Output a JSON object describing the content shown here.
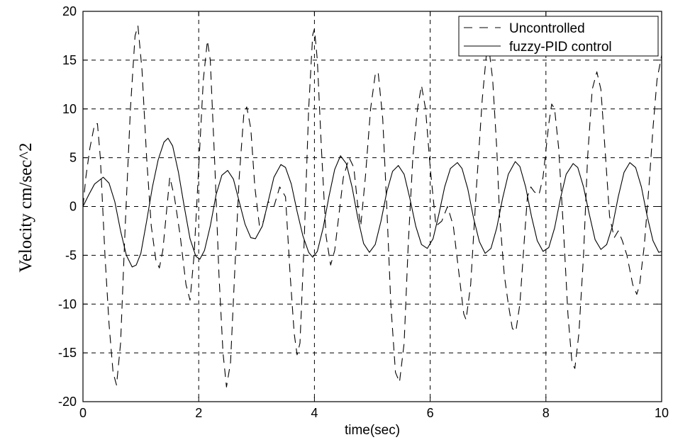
{
  "chart_data": {
    "type": "line",
    "title": "",
    "xlabel": "time(sec)",
    "ylabel": "Velocity cm/sec^2",
    "xlim": [
      0,
      10
    ],
    "ylim": [
      -20,
      20
    ],
    "x_ticks": [
      "0",
      "2",
      "4",
      "6",
      "8",
      "10"
    ],
    "y_ticks": [
      "-20",
      "-15",
      "-10",
      "-5",
      "0",
      "5",
      "10",
      "15",
      "20"
    ],
    "grid": true,
    "legend_position": "top-right",
    "series": [
      {
        "name": "Uncontrolled",
        "style": "dashed",
        "color": "#000000",
        "points": [
          [
            0.0,
            0
          ],
          [
            0.05,
            3
          ],
          [
            0.12,
            6
          ],
          [
            0.2,
            8.4
          ],
          [
            0.25,
            8.5
          ],
          [
            0.3,
            5
          ],
          [
            0.38,
            -5
          ],
          [
            0.45,
            -12
          ],
          [
            0.52,
            -17
          ],
          [
            0.58,
            -18.3
          ],
          [
            0.65,
            -14
          ],
          [
            0.73,
            -2
          ],
          [
            0.82,
            10
          ],
          [
            0.9,
            17.5
          ],
          [
            0.95,
            18.5
          ],
          [
            1.02,
            14
          ],
          [
            1.1,
            5
          ],
          [
            1.18,
            -2
          ],
          [
            1.26,
            -5.5
          ],
          [
            1.32,
            -6.3
          ],
          [
            1.38,
            -4.5
          ],
          [
            1.42,
            -2
          ],
          [
            1.5,
            3
          ],
          [
            1.58,
            1
          ],
          [
            1.68,
            -3
          ],
          [
            1.78,
            -8
          ],
          [
            1.85,
            -9.6
          ],
          [
            1.92,
            -5
          ],
          [
            2.0,
            4
          ],
          [
            2.08,
            13
          ],
          [
            2.15,
            17
          ],
          [
            2.2,
            15
          ],
          [
            2.28,
            4
          ],
          [
            2.35,
            -7
          ],
          [
            2.42,
            -15
          ],
          [
            2.48,
            -18.5
          ],
          [
            2.55,
            -16
          ],
          [
            2.62,
            -7
          ],
          [
            2.7,
            3
          ],
          [
            2.78,
            9.5
          ],
          [
            2.83,
            10.2
          ],
          [
            2.9,
            8
          ],
          [
            2.97,
            2
          ],
          [
            3.05,
            -2
          ],
          [
            3.12,
            -1.5
          ],
          [
            3.2,
            0.5
          ],
          [
            3.3,
            0
          ],
          [
            3.4,
            2
          ],
          [
            3.5,
            1
          ],
          [
            3.58,
            -7
          ],
          [
            3.65,
            -13
          ],
          [
            3.7,
            -15.2
          ],
          [
            3.75,
            -14
          ],
          [
            3.82,
            -4
          ],
          [
            3.9,
            10
          ],
          [
            3.97,
            17.6
          ],
          [
            4.0,
            18.2
          ],
          [
            4.05,
            15
          ],
          [
            4.12,
            6
          ],
          [
            4.2,
            -3
          ],
          [
            4.28,
            -6
          ],
          [
            4.35,
            -4.5
          ],
          [
            4.42,
            -1
          ],
          [
            4.5,
            3
          ],
          [
            4.6,
            5
          ],
          [
            4.68,
            4
          ],
          [
            4.75,
            0
          ],
          [
            4.8,
            -2
          ],
          [
            4.88,
            3
          ],
          [
            4.97,
            10
          ],
          [
            5.05,
            13.5
          ],
          [
            5.1,
            13.8
          ],
          [
            5.18,
            9
          ],
          [
            5.25,
            0
          ],
          [
            5.32,
            -10
          ],
          [
            5.4,
            -17
          ],
          [
            5.47,
            -18
          ],
          [
            5.55,
            -14
          ],
          [
            5.62,
            -4
          ],
          [
            5.7,
            5
          ],
          [
            5.78,
            10
          ],
          [
            5.85,
            12.4
          ],
          [
            5.92,
            10
          ],
          [
            6.0,
            4
          ],
          [
            6.1,
            -2
          ],
          [
            6.2,
            -1.5
          ],
          [
            6.3,
            0
          ],
          [
            6.4,
            -2
          ],
          [
            6.5,
            -7
          ],
          [
            6.58,
            -11
          ],
          [
            6.62,
            -11.6
          ],
          [
            6.7,
            -8
          ],
          [
            6.8,
            2
          ],
          [
            6.9,
            11
          ],
          [
            6.97,
            15.5
          ],
          [
            7.02,
            16
          ],
          [
            7.08,
            13
          ],
          [
            7.15,
            6
          ],
          [
            7.2,
            -1
          ],
          [
            7.28,
            -7
          ],
          [
            7.35,
            -10
          ],
          [
            7.42,
            -12.5
          ],
          [
            7.48,
            -12.8
          ],
          [
            7.55,
            -10
          ],
          [
            7.62,
            -4
          ],
          [
            7.68,
            1
          ],
          [
            7.74,
            2
          ],
          [
            7.8,
            1.5
          ],
          [
            7.88,
            1.2
          ],
          [
            7.95,
            3
          ],
          [
            8.05,
            8.5
          ],
          [
            8.1,
            10.5
          ],
          [
            8.15,
            10
          ],
          [
            8.22,
            6
          ],
          [
            8.3,
            -2
          ],
          [
            8.38,
            -11
          ],
          [
            8.45,
            -16
          ],
          [
            8.5,
            -16.6
          ],
          [
            8.57,
            -13
          ],
          [
            8.65,
            -5
          ],
          [
            8.72,
            5
          ],
          [
            8.8,
            12
          ],
          [
            8.88,
            13.8
          ],
          [
            8.95,
            12
          ],
          [
            9.02,
            6
          ],
          [
            9.1,
            -1
          ],
          [
            9.18,
            -3.2
          ],
          [
            9.25,
            -2.5
          ],
          [
            9.32,
            -3.5
          ],
          [
            9.4,
            -5
          ],
          [
            9.5,
            -8
          ],
          [
            9.57,
            -9
          ],
          [
            9.62,
            -8
          ],
          [
            9.7,
            -4
          ],
          [
            9.78,
            2
          ],
          [
            9.85,
            8
          ],
          [
            9.92,
            13
          ],
          [
            10.0,
            15.5
          ]
        ]
      },
      {
        "name": "fuzzy-PID control",
        "style": "solid",
        "color": "#000000",
        "points": [
          [
            0.0,
            0
          ],
          [
            0.1,
            1.2
          ],
          [
            0.2,
            2.3
          ],
          [
            0.35,
            3.0
          ],
          [
            0.45,
            2.4
          ],
          [
            0.55,
            0.5
          ],
          [
            0.65,
            -2.5
          ],
          [
            0.75,
            -5.0
          ],
          [
            0.85,
            -6.2
          ],
          [
            0.92,
            -6.0
          ],
          [
            1.0,
            -4.8
          ],
          [
            1.1,
            -1.5
          ],
          [
            1.2,
            2.0
          ],
          [
            1.3,
            4.8
          ],
          [
            1.4,
            6.6
          ],
          [
            1.47,
            7.0
          ],
          [
            1.55,
            6.2
          ],
          [
            1.65,
            3.5
          ],
          [
            1.75,
            0
          ],
          [
            1.85,
            -3.3
          ],
          [
            1.95,
            -5.1
          ],
          [
            2.02,
            -5.4
          ],
          [
            2.1,
            -4.5
          ],
          [
            2.2,
            -2.0
          ],
          [
            2.3,
            1.2
          ],
          [
            2.4,
            3.2
          ],
          [
            2.5,
            3.7
          ],
          [
            2.6,
            2.8
          ],
          [
            2.7,
            0.5
          ],
          [
            2.8,
            -1.8
          ],
          [
            2.9,
            -3.2
          ],
          [
            2.98,
            -3.3
          ],
          [
            3.1,
            -2.0
          ],
          [
            3.2,
            0.5
          ],
          [
            3.3,
            3.0
          ],
          [
            3.42,
            4.3
          ],
          [
            3.5,
            4.0
          ],
          [
            3.6,
            2.3
          ],
          [
            3.7,
            -0.5
          ],
          [
            3.8,
            -3.0
          ],
          [
            3.9,
            -4.7
          ],
          [
            3.97,
            -5.2
          ],
          [
            4.05,
            -4.6
          ],
          [
            4.15,
            -2.2
          ],
          [
            4.25,
            1.0
          ],
          [
            4.35,
            3.8
          ],
          [
            4.45,
            5.2
          ],
          [
            4.55,
            4.4
          ],
          [
            4.65,
            2.0
          ],
          [
            4.75,
            -1.2
          ],
          [
            4.85,
            -3.8
          ],
          [
            4.95,
            -4.7
          ],
          [
            5.05,
            -3.9
          ],
          [
            5.15,
            -1.5
          ],
          [
            5.25,
            1.5
          ],
          [
            5.35,
            3.6
          ],
          [
            5.45,
            4.2
          ],
          [
            5.55,
            3.3
          ],
          [
            5.65,
            0.8
          ],
          [
            5.75,
            -2.0
          ],
          [
            5.85,
            -3.9
          ],
          [
            5.95,
            -4.3
          ],
          [
            6.05,
            -3.3
          ],
          [
            6.15,
            -0.8
          ],
          [
            6.25,
            2.0
          ],
          [
            6.35,
            3.9
          ],
          [
            6.47,
            4.5
          ],
          [
            6.55,
            3.9
          ],
          [
            6.65,
            1.8
          ],
          [
            6.75,
            -1.2
          ],
          [
            6.85,
            -3.6
          ],
          [
            6.95,
            -4.8
          ],
          [
            7.05,
            -4.3
          ],
          [
            7.15,
            -2.2
          ],
          [
            7.25,
            0.8
          ],
          [
            7.35,
            3.3
          ],
          [
            7.47,
            4.6
          ],
          [
            7.55,
            4.1
          ],
          [
            7.65,
            2.0
          ],
          [
            7.75,
            -1.0
          ],
          [
            7.85,
            -3.5
          ],
          [
            7.95,
            -4.6
          ],
          [
            8.05,
            -4.2
          ],
          [
            8.15,
            -2.2
          ],
          [
            8.25,
            0.8
          ],
          [
            8.35,
            3.3
          ],
          [
            8.47,
            4.4
          ],
          [
            8.55,
            4.0
          ],
          [
            8.65,
            2.0
          ],
          [
            8.75,
            -0.8
          ],
          [
            8.85,
            -3.4
          ],
          [
            8.95,
            -4.4
          ],
          [
            9.05,
            -3.9
          ],
          [
            9.15,
            -2.0
          ],
          [
            9.25,
            1.0
          ],
          [
            9.35,
            3.5
          ],
          [
            9.45,
            4.5
          ],
          [
            9.55,
            4.0
          ],
          [
            9.65,
            2.0
          ],
          [
            9.75,
            -1.0
          ],
          [
            9.85,
            -3.5
          ],
          [
            9.95,
            -4.7
          ],
          [
            10.0,
            -4.6
          ]
        ]
      }
    ]
  }
}
